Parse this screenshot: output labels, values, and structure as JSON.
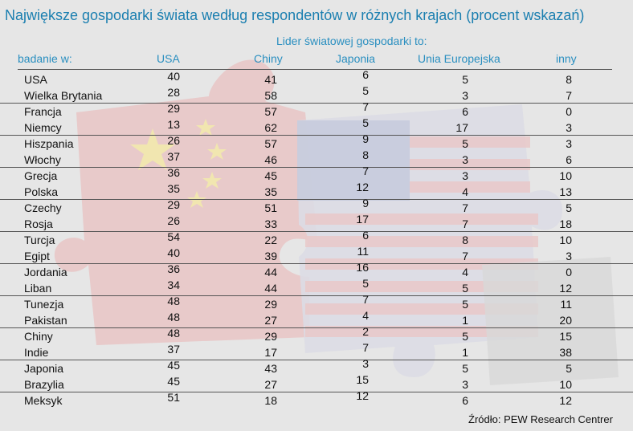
{
  "title": "Największe gospodarki świata według respondentów w różnych krajach (procent wskazań)",
  "subtitle": "Lider światowej gospodarki to:",
  "source": "Źródło: PEW Research Centrer",
  "chart_data": {
    "type": "table",
    "columns": [
      "badanie w:",
      "USA",
      "Chiny",
      "Japonia",
      "Unia Europejska",
      "inny"
    ],
    "rows": [
      {
        "country": "USA",
        "usa": "40",
        "chiny": "41",
        "japonia": "6",
        "ue": "5",
        "inny": "8"
      },
      {
        "country": "Wielka Brytania",
        "usa": "28",
        "chiny": "58",
        "japonia": "5",
        "ue": "3",
        "inny": "7"
      },
      {
        "country": "Francja",
        "usa": "29",
        "chiny": "57",
        "japonia": "7",
        "ue": "6",
        "inny": "0"
      },
      {
        "country": "Niemcy",
        "usa": "13",
        "chiny": "62",
        "japonia": "5",
        "ue": "17",
        "inny": "3"
      },
      {
        "country": "Hiszpania",
        "usa": "26",
        "chiny": "57",
        "japonia": "9",
        "ue": "5",
        "inny": "3"
      },
      {
        "country": "Włochy",
        "usa": "37",
        "chiny": "46",
        "japonia": "8",
        "ue": "3",
        "inny": "6"
      },
      {
        "country": "Grecja",
        "usa": "36",
        "chiny": "45",
        "japonia": "7",
        "ue": "3",
        "inny": "10"
      },
      {
        "country": "Polska",
        "usa": "35",
        "chiny": "35",
        "japonia": "12",
        "ue": "4",
        "inny": "13"
      },
      {
        "country": "Czechy",
        "usa": "29",
        "chiny": "51",
        "japonia": "9",
        "ue": "7",
        "inny": "5"
      },
      {
        "country": "Rosja",
        "usa": "26",
        "chiny": "33",
        "japonia": "17",
        "ue": "7",
        "inny": "18"
      },
      {
        "country": "Turcja",
        "usa": "54",
        "chiny": "22",
        "japonia": "6",
        "ue": "8",
        "inny": "10"
      },
      {
        "country": "Egipt",
        "usa": "40",
        "chiny": "39",
        "japonia": "11",
        "ue": "7",
        "inny": "3"
      },
      {
        "country": "Jordania",
        "usa": "36",
        "chiny": "44",
        "japonia": "16",
        "ue": "4",
        "inny": "0"
      },
      {
        "country": "Liban",
        "usa": "34",
        "chiny": "44",
        "japonia": "5",
        "ue": "5",
        "inny": "12"
      },
      {
        "country": "Tunezja",
        "usa": "48",
        "chiny": "29",
        "japonia": "7",
        "ue": "5",
        "inny": "11"
      },
      {
        "country": "Pakistan",
        "usa": "48",
        "chiny": "27",
        "japonia": "4",
        "ue": "1",
        "inny": "20"
      },
      {
        "country": "Chiny",
        "usa": "48",
        "chiny": "29",
        "japonia": "2",
        "ue": "5",
        "inny": "15"
      },
      {
        "country": "Indie",
        "usa": "37",
        "chiny": "17",
        "japonia": "7",
        "ue": "1",
        "inny": "38"
      },
      {
        "country": "Japonia",
        "usa": "45",
        "chiny": "43",
        "japonia": "3",
        "ue": "5",
        "inny": "5"
      },
      {
        "country": "Brazylia",
        "usa": "45",
        "chiny": "27",
        "japonia": "15",
        "ue": "3",
        "inny": "10"
      },
      {
        "country": "Meksyk",
        "usa": "51",
        "chiny": "18",
        "japonia": "12",
        "ue": "6",
        "inny": "12"
      }
    ]
  }
}
